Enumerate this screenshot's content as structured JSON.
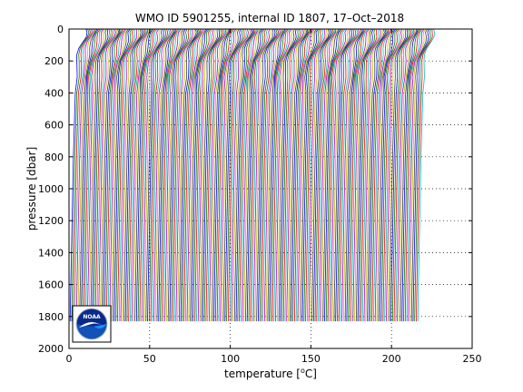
{
  "chart_data": {
    "type": "line",
    "title": "WMO ID 5901255, internal ID 1807, 17–Oct–2018",
    "xlabel": "temperature [°C]",
    "xlabel_parts": {
      "before": "temperature [",
      "sup": "o",
      "after": "C]"
    },
    "ylabel": "pressure [dbar]",
    "xlim": [
      0,
      250
    ],
    "ylim": [
      2000,
      0
    ],
    "y_reversed": true,
    "grid": true,
    "xticks": [
      "0",
      "50",
      "100",
      "150",
      "200",
      "250"
    ],
    "yticks": [
      "0",
      "200",
      "400",
      "600",
      "800",
      "1000",
      "1200",
      "1400",
      "1600",
      "1800",
      "2000"
    ],
    "description_note": "Waterfall of sequential temperature profiles, each profile offset further right; profiles span roughly 0–1830 dbar.",
    "profile_template": {
      "pressure": [
        0,
        20,
        50,
        80,
        120,
        160,
        200,
        300,
        400,
        500,
        600,
        700,
        800,
        900,
        1000,
        1100,
        1200,
        1300,
        1400,
        1500,
        1600,
        1700,
        1830
      ],
      "temperature": [
        10.5,
        10.2,
        9.6,
        8.5,
        7.0,
        6.0,
        5.2,
        4.3,
        3.9,
        3.6,
        3.3,
        3.0,
        2.7,
        2.5,
        2.3,
        2.1,
        1.9,
        1.7,
        1.5,
        1.3,
        1.1,
        0.9,
        0.7
      ]
    },
    "profile_offsets": {
      "first": 0,
      "last": 216,
      "step": 0.98
    },
    "colors": [
      "#0000ff",
      "#008000",
      "#ff0000",
      "#00bfbf",
      "#bf00bf",
      "#bfbf00",
      "#404040"
    ]
  },
  "logo": {
    "name": "noaa-logo",
    "text": "NOAA"
  }
}
